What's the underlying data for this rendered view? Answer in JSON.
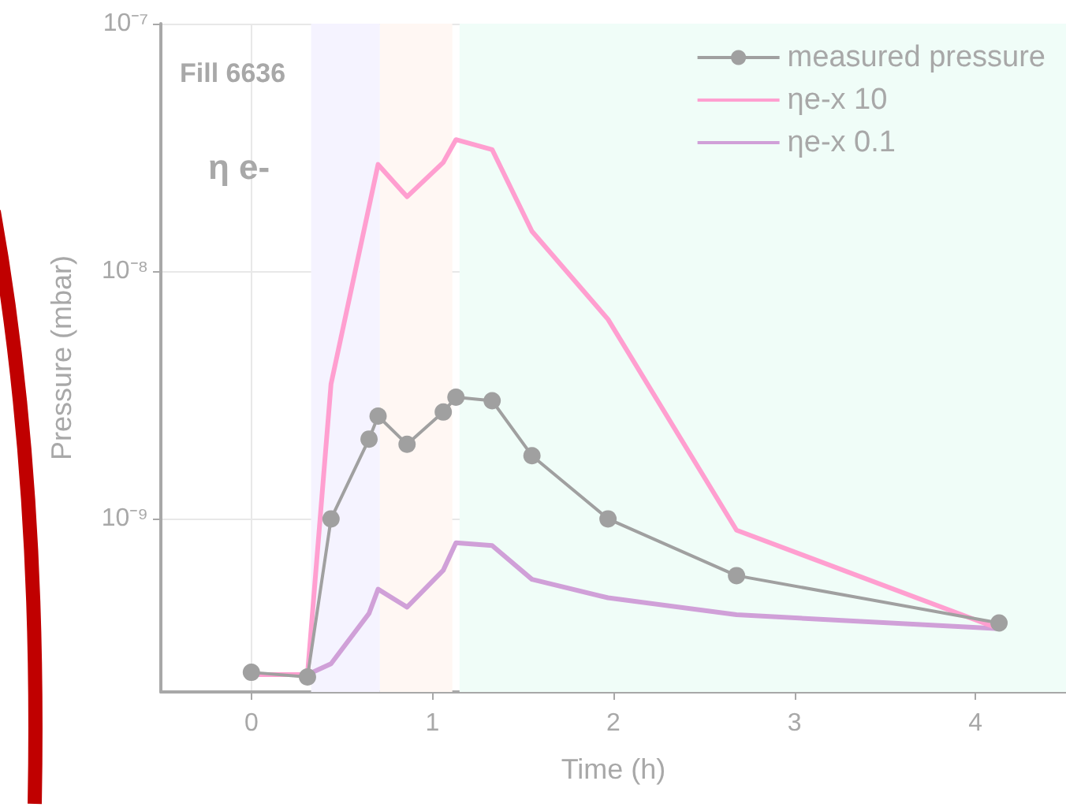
{
  "chart_data": {
    "type": "line",
    "xlabel": "Time (h)",
    "ylabel": "Pressure (mbar)",
    "annotations": [
      "Fill 6636",
      "η e-"
    ],
    "series": [
      {
        "name": "measured pressure",
        "color": "#a0a0a0",
        "marker": "circle",
        "x": [
          0,
          0.31,
          0.44,
          0.65,
          0.7,
          0.86,
          1.06,
          1.13,
          1.33,
          1.55,
          1.97,
          2.68,
          4.13
        ],
        "values": [
          2.4e-10,
          2.3e-10,
          1e-09,
          2.1e-09,
          2.6e-09,
          2e-09,
          2.7e-09,
          3.1e-09,
          3e-09,
          1.8e-09,
          1e-09,
          5.9e-10,
          3.8e-10
        ]
      },
      {
        "name": "ηe-x 10",
        "color": "#ff9fd0",
        "marker": "none",
        "x": [
          0,
          0.31,
          0.44,
          0.7,
          0.86,
          1.06,
          1.13,
          1.33,
          1.55,
          1.97,
          2.68,
          4.13
        ],
        "values": [
          2.35e-10,
          2.35e-10,
          3.5e-09,
          2.7e-08,
          2e-08,
          2.75e-08,
          3.4e-08,
          3.1e-08,
          1.45e-08,
          6.4e-09,
          9e-10,
          3.6e-10
        ]
      },
      {
        "name": "ηe-x 0.1",
        "color": "#d0a0d8",
        "marker": "none",
        "x": [
          0,
          0.31,
          0.44,
          0.65,
          0.7,
          0.86,
          1.06,
          1.13,
          1.33,
          1.55,
          1.97,
          2.68,
          4.13
        ],
        "values": [
          2.35e-10,
          2.35e-10,
          2.6e-10,
          4.15e-10,
          5.2e-10,
          4.4e-10,
          6.2e-10,
          8e-10,
          7.8e-10,
          5.7e-10,
          4.8e-10,
          4.1e-10,
          3.6e-10
        ]
      }
    ],
    "bands": [
      {
        "axis": "x",
        "from": 0.33,
        "to": 0.71,
        "color": "#f5f3ff"
      },
      {
        "axis": "x",
        "from": 0.71,
        "to": 1.11,
        "color": "#fff7f3"
      },
      {
        "axis": "x",
        "from": 1.15,
        "to": 4.5,
        "color": "#f0fdf8"
      }
    ],
    "xlim": [
      -0.5,
      4.5
    ],
    "xticks": [
      0,
      1,
      2,
      3,
      4
    ],
    "ylim": [
      2e-10,
      1e-07
    ],
    "yticks": [
      {
        "value": 1e-09,
        "label": "10⁻⁹"
      },
      {
        "value": 1e-08,
        "label": "10⁻⁸"
      },
      {
        "value": 1e-07,
        "label": "10⁻⁷"
      }
    ],
    "log": "y",
    "grid": true,
    "legend": "top right",
    "line_style": "solid"
  }
}
